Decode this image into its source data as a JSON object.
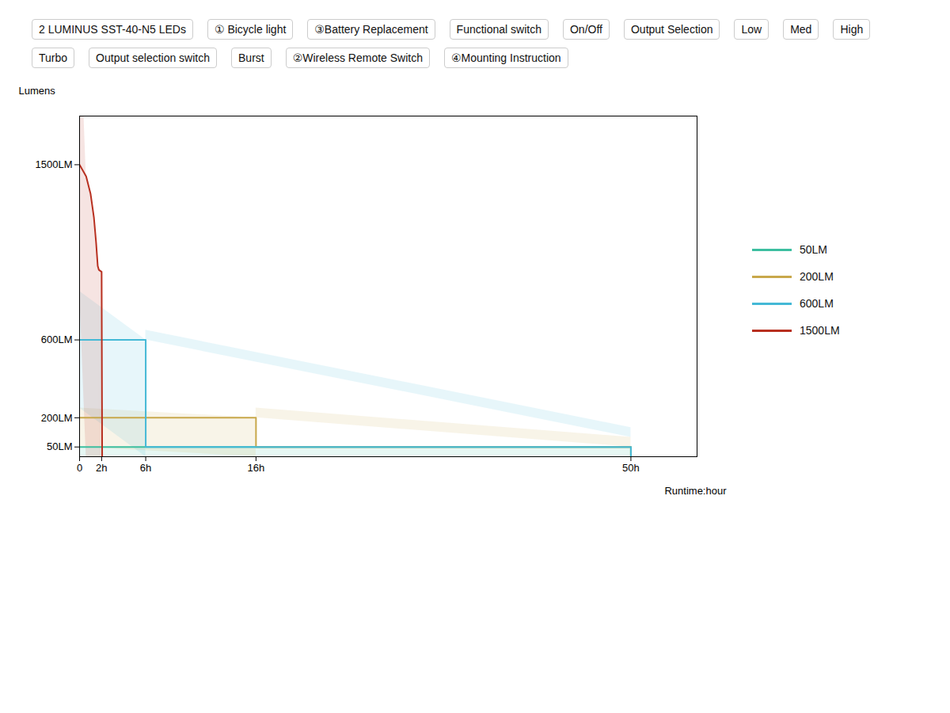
{
  "chart_data": {
    "type": "area",
    "xlabel": "Runtime:hour",
    "ylabel": "Lumens",
    "xlim": [
      0,
      56
    ],
    "xticks": [
      0,
      {
        "value": 2,
        "label": "2h"
      },
      {
        "value": 6,
        "label": "6h"
      },
      {
        "value": 16,
        "label": "16h"
      },
      {
        "value": 50,
        "label": "50h"
      }
    ],
    "ylim": [
      0,
      1750
    ],
    "yticks": [
      {
        "value": 50,
        "label": "50LM"
      },
      {
        "value": 200,
        "label": "200LM"
      },
      {
        "value": 600,
        "label": "600LM"
      },
      {
        "value": 1500,
        "label": "1500LM"
      }
    ],
    "grid": false,
    "legend": "right",
    "series": [
      {
        "name": "50LM",
        "color": "#3dbfa0",
        "x": [
          0,
          50,
          50
        ],
        "values": [
          50,
          50,
          0
        ]
      },
      {
        "name": "200LM",
        "color": "#c8a84b",
        "x": [
          0,
          16,
          16,
          50,
          50
        ],
        "values": [
          200,
          200,
          50,
          50,
          0
        ]
      },
      {
        "name": "600LM",
        "color": "#44b9d6",
        "x": [
          0,
          6,
          6,
          50,
          50
        ],
        "values": [
          600,
          600,
          50,
          50,
          0
        ]
      },
      {
        "name": "1500LM",
        "color": "#b83020",
        "x": [
          0,
          0.6,
          1.0,
          1.3,
          1.5,
          1.65,
          1.75,
          2.0,
          2.05
        ],
        "values": [
          1500,
          1440,
          1350,
          1230,
          1100,
          980,
          960,
          950,
          0
        ]
      }
    ],
    "annotations": [
      "2 LUMINUS SST-40-N5 LEDs",
      "① Bicycle light",
      "③Battery Replacement",
      "Functional switch",
      "On/Off",
      "Output Selection",
      "Low",
      "Med",
      "High",
      "Turbo",
      "Output selection switch",
      "Burst",
      "②Wireless Remote Switch",
      "④Mounting Instruction"
    ]
  }
}
